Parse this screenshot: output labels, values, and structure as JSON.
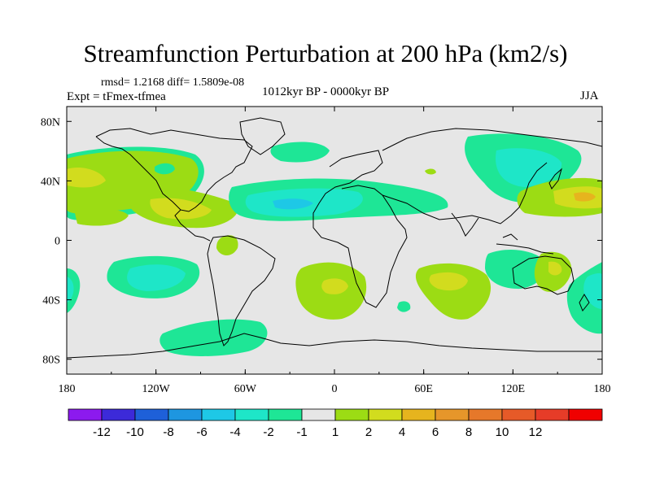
{
  "title": "Streamfunction Perturbation at 200 hPa (km2/s)",
  "stats": "rmsd= 1.2168 diff= 1.5809e-08",
  "expt": "Expt = tFmex-tfmea",
  "period": "1012kyr BP - 0000kyr BP",
  "season": "JJA",
  "lon_ticks": [
    "180",
    "120W",
    "60W",
    "0",
    "60E",
    "120E",
    "180"
  ],
  "lat_ticks": [
    "80N",
    "40N",
    "0",
    "40S",
    "80S"
  ],
  "colorbar": {
    "colors": [
      "#8c1aee",
      "#3c2ad9",
      "#1e60d9",
      "#1e96e0",
      "#1ec8e6",
      "#1ee6c8",
      "#1ee696",
      "#e6e6e6",
      "#9cdc14",
      "#d2dc1e",
      "#e6b41e",
      "#e6962a",
      "#e6782a",
      "#e65a28",
      "#e63c28",
      "#f00000"
    ],
    "labels": [
      "-12",
      "-10",
      "-8",
      "-6",
      "-4",
      "-2",
      "-1",
      "1",
      "2",
      "4",
      "6",
      "8",
      "10",
      "12"
    ]
  },
  "colors": {
    "background": "#e6e6e6",
    "coast": "#000000"
  },
  "anomaly_regions": [
    {
      "name": "north-pacific-positive",
      "value": 2
    },
    {
      "name": "east-pacific-positive",
      "value": 4
    },
    {
      "name": "north-atlantic-negative",
      "value": -4
    },
    {
      "name": "asia-negative",
      "value": -4
    },
    {
      "name": "west-pacific-positive",
      "value": 6
    },
    {
      "name": "south-pacific-negative",
      "value": -4
    },
    {
      "name": "south-atlantic-positive",
      "value": 4
    },
    {
      "name": "indian-ocean-positive",
      "value": 4
    },
    {
      "name": "australia-positive",
      "value": 4
    },
    {
      "name": "southern-ocean-negative",
      "value": -2
    }
  ]
}
